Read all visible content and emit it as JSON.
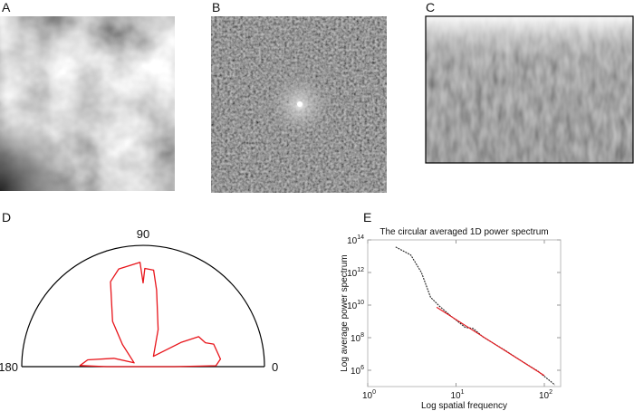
{
  "panels": {
    "a": {
      "label": "A"
    },
    "b": {
      "label": "B"
    },
    "c": {
      "label": "C"
    },
    "d": {
      "label": "D"
    },
    "e": {
      "label": "E"
    }
  },
  "chart_data": [
    {
      "type": "polar-line",
      "panel": "D",
      "angle_range": [
        0,
        180
      ],
      "angle_tick_labels": [
        "0",
        "90",
        "180"
      ],
      "series_color": "#e8141a",
      "series": [
        {
          "points": [
            [
              0,
              0.26
            ],
            [
              0.7,
              0.6
            ],
            [
              5.6,
              0.64
            ],
            [
              17.7,
              0.61
            ],
            [
              21,
              0.55
            ],
            [
              28.4,
              0.52
            ],
            [
              32.6,
              0.37
            ],
            [
              45,
              0.12
            ],
            [
              68,
              0.33
            ],
            [
              80,
              0.64
            ],
            [
              83.8,
              0.8
            ],
            [
              89,
              0.81
            ],
            [
              90,
              0.69
            ],
            [
              91.7,
              0.86
            ],
            [
              97.6,
              0.84
            ],
            [
              104,
              0.83
            ],
            [
              111,
              0.75
            ],
            [
              124,
              0.45
            ],
            [
              133,
              0.25
            ],
            [
              157,
              0.08
            ],
            [
              164,
              0.25
            ],
            [
              173,
              0.46
            ],
            [
              179,
              0.52
            ],
            [
              180,
              0.3
            ]
          ]
        }
      ]
    },
    {
      "type": "line",
      "panel": "E",
      "title": "The circular averaged 1D power spectrum",
      "xlabel": "Log spatial frequency",
      "ylabel": "Log average power spectrum",
      "xscale": "log",
      "yscale": "log",
      "xlim": [
        1,
        153
      ],
      "ylim": [
        100000.0,
        100000000000000.0
      ],
      "x_ticks": [
        {
          "v": 1,
          "b": "10",
          "e": "0"
        },
        {
          "v": 10,
          "b": "10",
          "e": "1"
        },
        {
          "v": 100,
          "b": "10",
          "e": "2"
        }
      ],
      "y_ticks": [
        {
          "v": 1000000.0,
          "b": "10",
          "e": "6"
        },
        {
          "v": 100000000.0,
          "b": "10",
          "e": "8"
        },
        {
          "v": 10000000000.0,
          "b": "10",
          "e": "10"
        },
        {
          "v": 1000000000000.0,
          "b": "10",
          "e": "12"
        },
        {
          "v": 100000000000000.0,
          "b": "10",
          "e": "14"
        }
      ],
      "series": [
        {
          "style": "dotted",
          "color": "#222222",
          "x": [
            2.07,
            3.07,
            4.06,
            5.15,
            6.5,
            8.6,
            12.7,
            15.6,
            20.5,
            35.8,
            57.5,
            85,
            132
          ],
          "y": [
            37000000000000.0,
            12000000000000.0,
            1000000000000.0,
            30000000000.0,
            8500000000.0,
            2300000000.0,
            430000000.0,
            370000000.0,
            105000000.0,
            17000000.0,
            3200000.0,
            870000.0,
            126000.0
          ]
        },
        {
          "style": "solid",
          "color": "#e8141a",
          "x": [
            6.03,
            100
          ],
          "y": [
            7400000000.0,
            470000.0
          ]
        }
      ]
    }
  ]
}
